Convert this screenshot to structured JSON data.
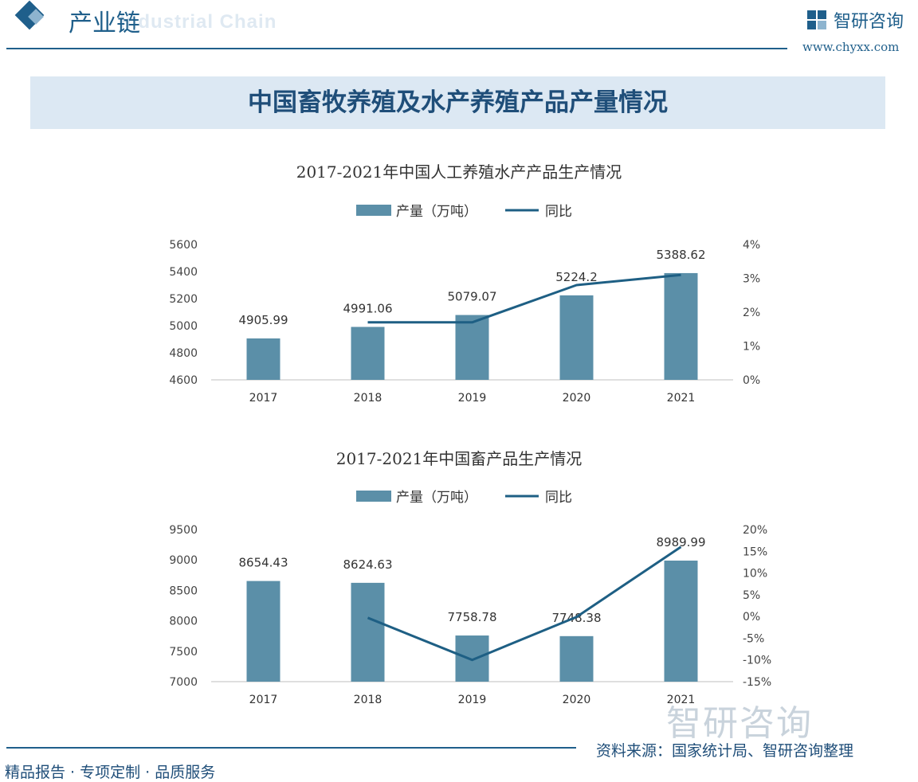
{
  "header": {
    "title": "产业链",
    "subtitle": "Industrial Chain",
    "logo_name": "智研咨询",
    "logo_url": "www.chyxx.com"
  },
  "banner": {
    "title": "中国畜牧养殖及水产养殖产品产量情况"
  },
  "legend": {
    "bar_label": "产量（万吨）",
    "line_label": "同比"
  },
  "colors": {
    "bar": "#5b8fa8",
    "line": "#1e5f84",
    "accent": "#1f5f8b"
  },
  "chart_data": [
    {
      "type": "bar",
      "title": "2017-2021年中国人工养殖水产产品生产情况",
      "categories": [
        "2017",
        "2018",
        "2019",
        "2020",
        "2021"
      ],
      "series": [
        {
          "name": "产量（万吨）",
          "type": "bar",
          "axis": "left",
          "values": [
            4905.99,
            4991.06,
            5079.07,
            5224.2,
            5388.62
          ],
          "labels": [
            "4905.99",
            "4991.06",
            "5079.07",
            "5224.2",
            "5388.62"
          ]
        },
        {
          "name": "同比",
          "type": "line",
          "axis": "right",
          "values": [
            null,
            1.7,
            1.7,
            2.8,
            3.1
          ]
        }
      ],
      "ylim": [
        4600,
        5600
      ],
      "yticks": [
        "4600",
        "4800",
        "5000",
        "5200",
        "5400",
        "5600"
      ],
      "y2lim": [
        0,
        4
      ],
      "y2ticks": [
        "0%",
        "1%",
        "2%",
        "3%",
        "4%"
      ],
      "legend_position": "top"
    },
    {
      "type": "bar",
      "title": "2017-2021年中国畜产品生产情况",
      "categories": [
        "2017",
        "2018",
        "2019",
        "2020",
        "2021"
      ],
      "series": [
        {
          "name": "产量（万吨）",
          "type": "bar",
          "axis": "left",
          "values": [
            8654.43,
            8624.63,
            7758.78,
            7748.38,
            8989.99
          ],
          "labels": [
            "8654.43",
            "8624.63",
            "7758.78",
            "7748.38",
            "8989.99"
          ]
        },
        {
          "name": "同比",
          "type": "line",
          "axis": "right",
          "values": [
            null,
            -0.3,
            -10.0,
            -0.1,
            16.0
          ]
        }
      ],
      "ylim": [
        7000,
        9500
      ],
      "yticks": [
        "7000",
        "7500",
        "8000",
        "8500",
        "9000",
        "9500"
      ],
      "y2lim": [
        -15,
        20
      ],
      "y2ticks": [
        "-15%",
        "-10%",
        "-5%",
        "0%",
        "5%",
        "10%",
        "15%",
        "20%"
      ],
      "legend_position": "top"
    }
  ],
  "footer": {
    "left": "精品报告 · 专项定制 · 品质服务",
    "source": "资料来源：国家统计局、智研咨询整理",
    "watermark": "智研咨询"
  }
}
